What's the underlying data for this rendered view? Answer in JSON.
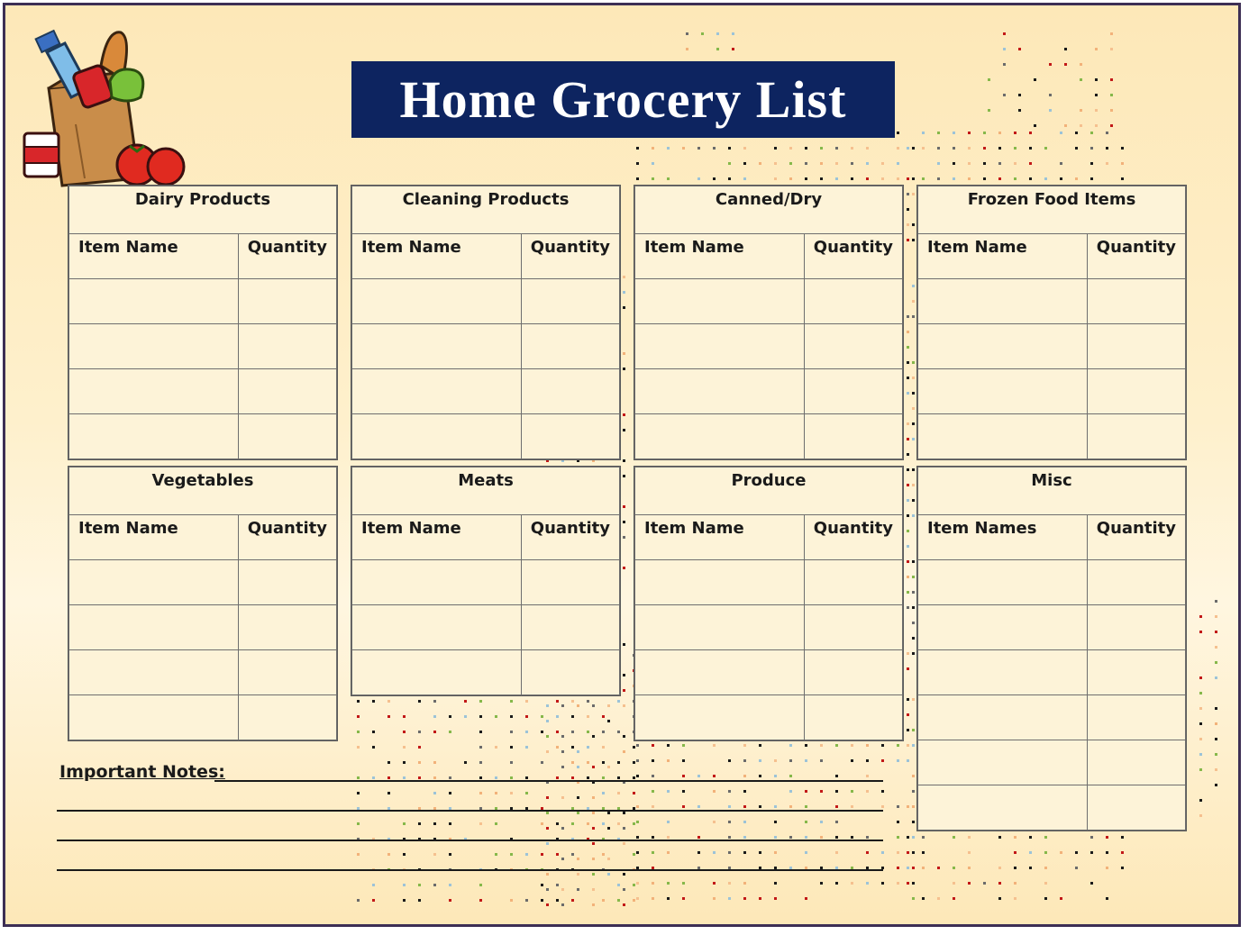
{
  "title": "Home Grocery List",
  "sections": [
    {
      "id": "dairy",
      "title": "Dairy Products",
      "name_header": "Item Name",
      "qty_header": "Quantity"
    },
    {
      "id": "cleaning",
      "title": "Cleaning Products",
      "name_header": "Item Name",
      "qty_header": "Quantity"
    },
    {
      "id": "canned",
      "title": "Canned/Dry",
      "name_header": "Item Name",
      "qty_header": "Quantity"
    },
    {
      "id": "frozen",
      "title": "Frozen Food Items",
      "name_header": "Item Name",
      "qty_header": "Quantity"
    },
    {
      "id": "vegetables",
      "title": "Vegetables",
      "name_header": "Item Name",
      "qty_header": "Quantity"
    },
    {
      "id": "meats",
      "title": "Meats",
      "name_header": "Item Name",
      "qty_header": "Quantity"
    },
    {
      "id": "produce",
      "title": "Produce",
      "name_header": "Item Name",
      "qty_header": "Quantity"
    },
    {
      "id": "misc",
      "title": "Misc",
      "name_header": "Item Names",
      "qty_header": "Quantity"
    }
  ],
  "notes": {
    "label": "Important Notes:"
  },
  "colors": {
    "title_bg": "#0d2460",
    "title_text": "#ffffff",
    "frame": "#3d2f55",
    "background": "#fde8b8"
  },
  "icons": [
    "grocery-bag-illustration"
  ]
}
